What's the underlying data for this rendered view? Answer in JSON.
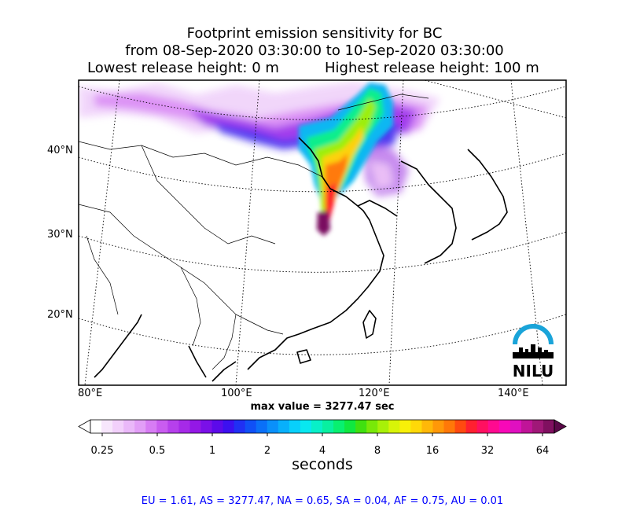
{
  "title": {
    "line1": "Footprint emission sensitivity for BC",
    "line2": "from 08-Sep-2020 03:30:00 to 10-Sep-2020 03:30:00",
    "line3a": "Lowest release height: 0 m",
    "line3b": "Highest release height: 100 m"
  },
  "map": {
    "lat_labels": [
      "40°N",
      "30°N",
      "20°N"
    ],
    "lon_labels": [
      "80°E",
      "100°E",
      "120°E",
      "140°E"
    ],
    "logo_text": "NILU",
    "logo_color": "#1aa4d9"
  },
  "max_value": "max value = 3277.47 sec",
  "colorbar": {
    "ticks": [
      "0.25",
      "0.5",
      "1",
      "2",
      "4",
      "8",
      "16",
      "32",
      "64"
    ],
    "units": "seconds",
    "colors": [
      "#ffffff",
      "#f7e6fc",
      "#f2d0fb",
      "#eab8f9",
      "#e29ef7",
      "#d77cf4",
      "#c95cf0",
      "#b640ec",
      "#a62ae8",
      "#9418e6",
      "#7a10e8",
      "#5c0aea",
      "#3c10f0",
      "#2030f4",
      "#1050f6",
      "#0a70f8",
      "#0a90fa",
      "#08b0fb",
      "#08d0fb",
      "#08e8f0",
      "#08f0c8",
      "#08f0a0",
      "#08f070",
      "#10e840",
      "#40e010",
      "#78e808",
      "#a8f008",
      "#d8f408",
      "#f8f008",
      "#ffd808",
      "#ffb808",
      "#ff9808",
      "#ff7808",
      "#ff4a10",
      "#ff2030",
      "#ff1060",
      "#ff0a90",
      "#f808b8",
      "#e010c0",
      "#c01498",
      "#a01878",
      "#801060"
    ]
  },
  "summary": "EU = 1.61,  AS = 3277.47,  NA = 0.65,  SA = 0.04,  AF = 0.75,  AU = 0.01"
}
